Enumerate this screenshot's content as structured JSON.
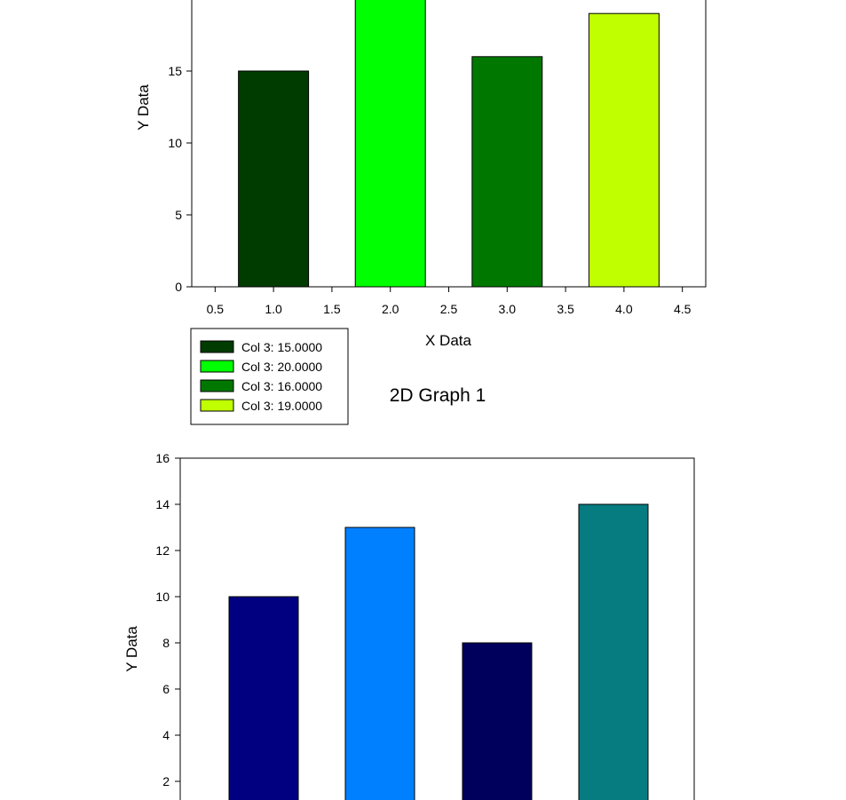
{
  "chart_data": [
    {
      "type": "bar",
      "x": [
        1.0,
        2.0,
        3.0,
        4.0
      ],
      "values": [
        15,
        20,
        16,
        19
      ],
      "colors": [
        "#003C00",
        "#00FF00",
        "#007800",
        "#C0FF00"
      ],
      "xlabel": "X Data",
      "ylabel": "Y Data",
      "xlim": [
        0.3,
        4.7
      ],
      "ylim": [
        0,
        20
      ],
      "xticks": [
        "0.5",
        "1.0",
        "1.5",
        "2.0",
        "2.5",
        "3.0",
        "3.5",
        "4.0",
        "4.5"
      ],
      "yticks": [
        "0",
        "5",
        "10",
        "15"
      ],
      "grid": false,
      "legend_position": "bottom-left",
      "legend": [
        "Col 3:  15.0000",
        "Col 3:  20.0000",
        "Col 3:  16.0000",
        "Col 3:  19.0000"
      ]
    },
    {
      "type": "bar",
      "x": [
        1.0,
        2.0,
        3.0,
        4.0
      ],
      "values": [
        10,
        13,
        8,
        14
      ],
      "colors": [
        "#000080",
        "#0080FF",
        "#00005C",
        "#067B80"
      ],
      "title": "2D Graph 1",
      "ylabel": "Y Data",
      "ylim": [
        0,
        16
      ],
      "yticks": [
        "2",
        "4",
        "6",
        "8",
        "10",
        "12",
        "14",
        "16"
      ],
      "grid": false
    }
  ]
}
